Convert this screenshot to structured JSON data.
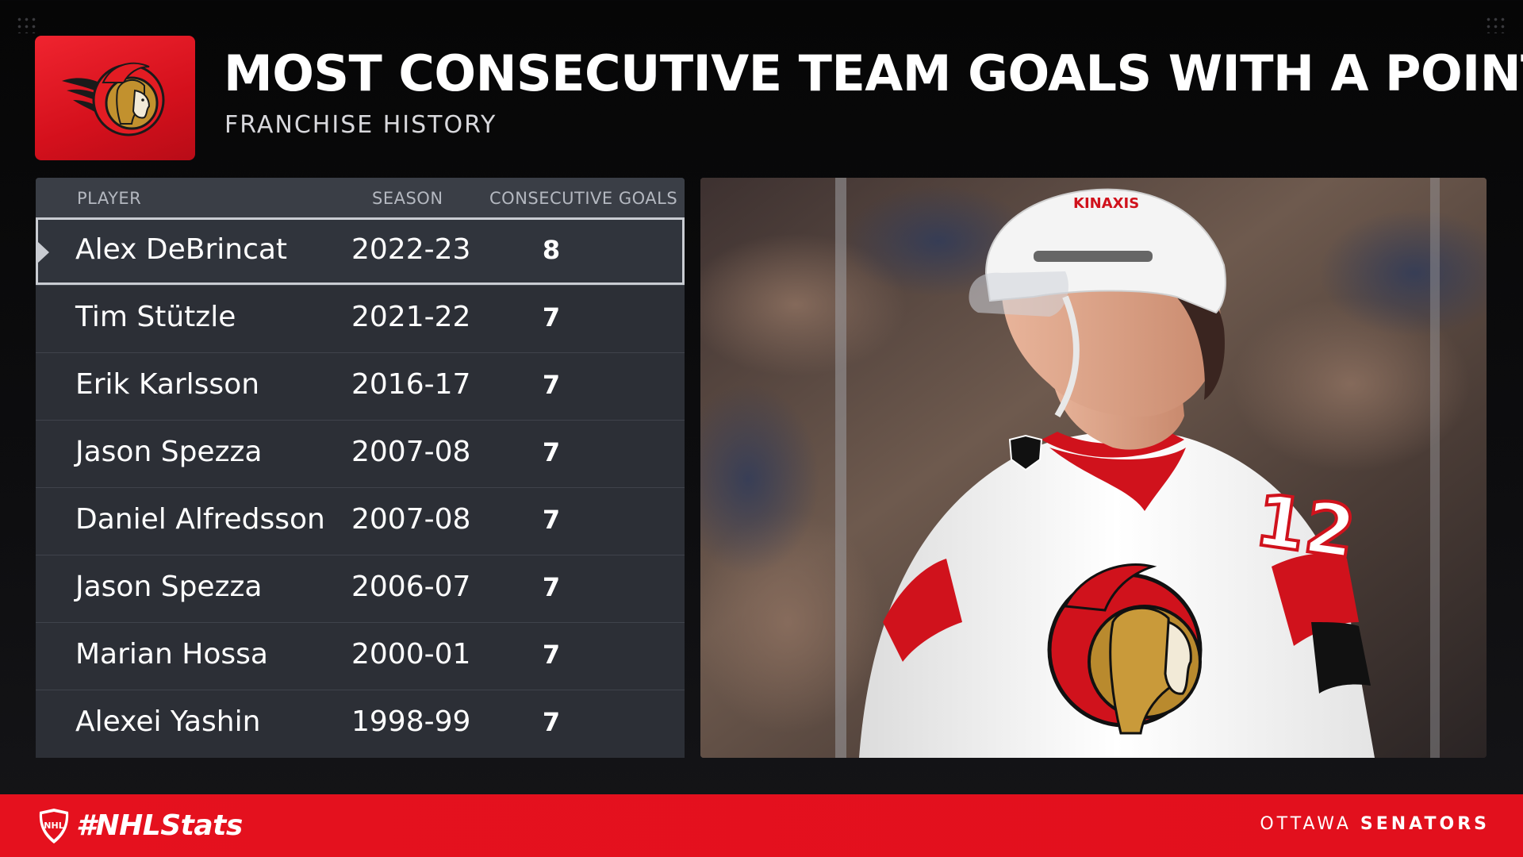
{
  "header": {
    "title": "MOST CONSECUTIVE TEAM GOALS WITH A POINT",
    "subtitle": "FRANCHISE HISTORY",
    "logo_icon": "senators-logo-icon"
  },
  "table": {
    "columns": [
      "PLAYER",
      "SEASON",
      "CONSECUTIVE GOALS"
    ],
    "rows": [
      {
        "player": "Alex DeBrincat",
        "season": "2022-23",
        "goals": "8"
      },
      {
        "player": "Tim Stützle",
        "season": "2021-22",
        "goals": "7"
      },
      {
        "player": "Erik Karlsson",
        "season": "2016-17",
        "goals": "7"
      },
      {
        "player": "Jason Spezza",
        "season": "2007-08",
        "goals": "7"
      },
      {
        "player": "Daniel Alfredsson",
        "season": "2007-08",
        "goals": "7"
      },
      {
        "player": "Jason Spezza",
        "season": "2006-07",
        "goals": "7"
      },
      {
        "player": "Marian Hossa",
        "season": "2000-01",
        "goals": "7"
      },
      {
        "player": "Alexei Yashin",
        "season": "1998-99",
        "goals": "7"
      }
    ],
    "highlighted_row": 0
  },
  "photo": {
    "helmet_text": "KINAXIS",
    "jersey_number": "12"
  },
  "footer": {
    "hashtag": "#NHLStats",
    "team_city": "OTTAWA",
    "team_club": "SENATORS"
  },
  "colors": {
    "accent_red": "#e2101d",
    "table_bg": "#2c2f36",
    "header_bg": "#3a3e46"
  }
}
